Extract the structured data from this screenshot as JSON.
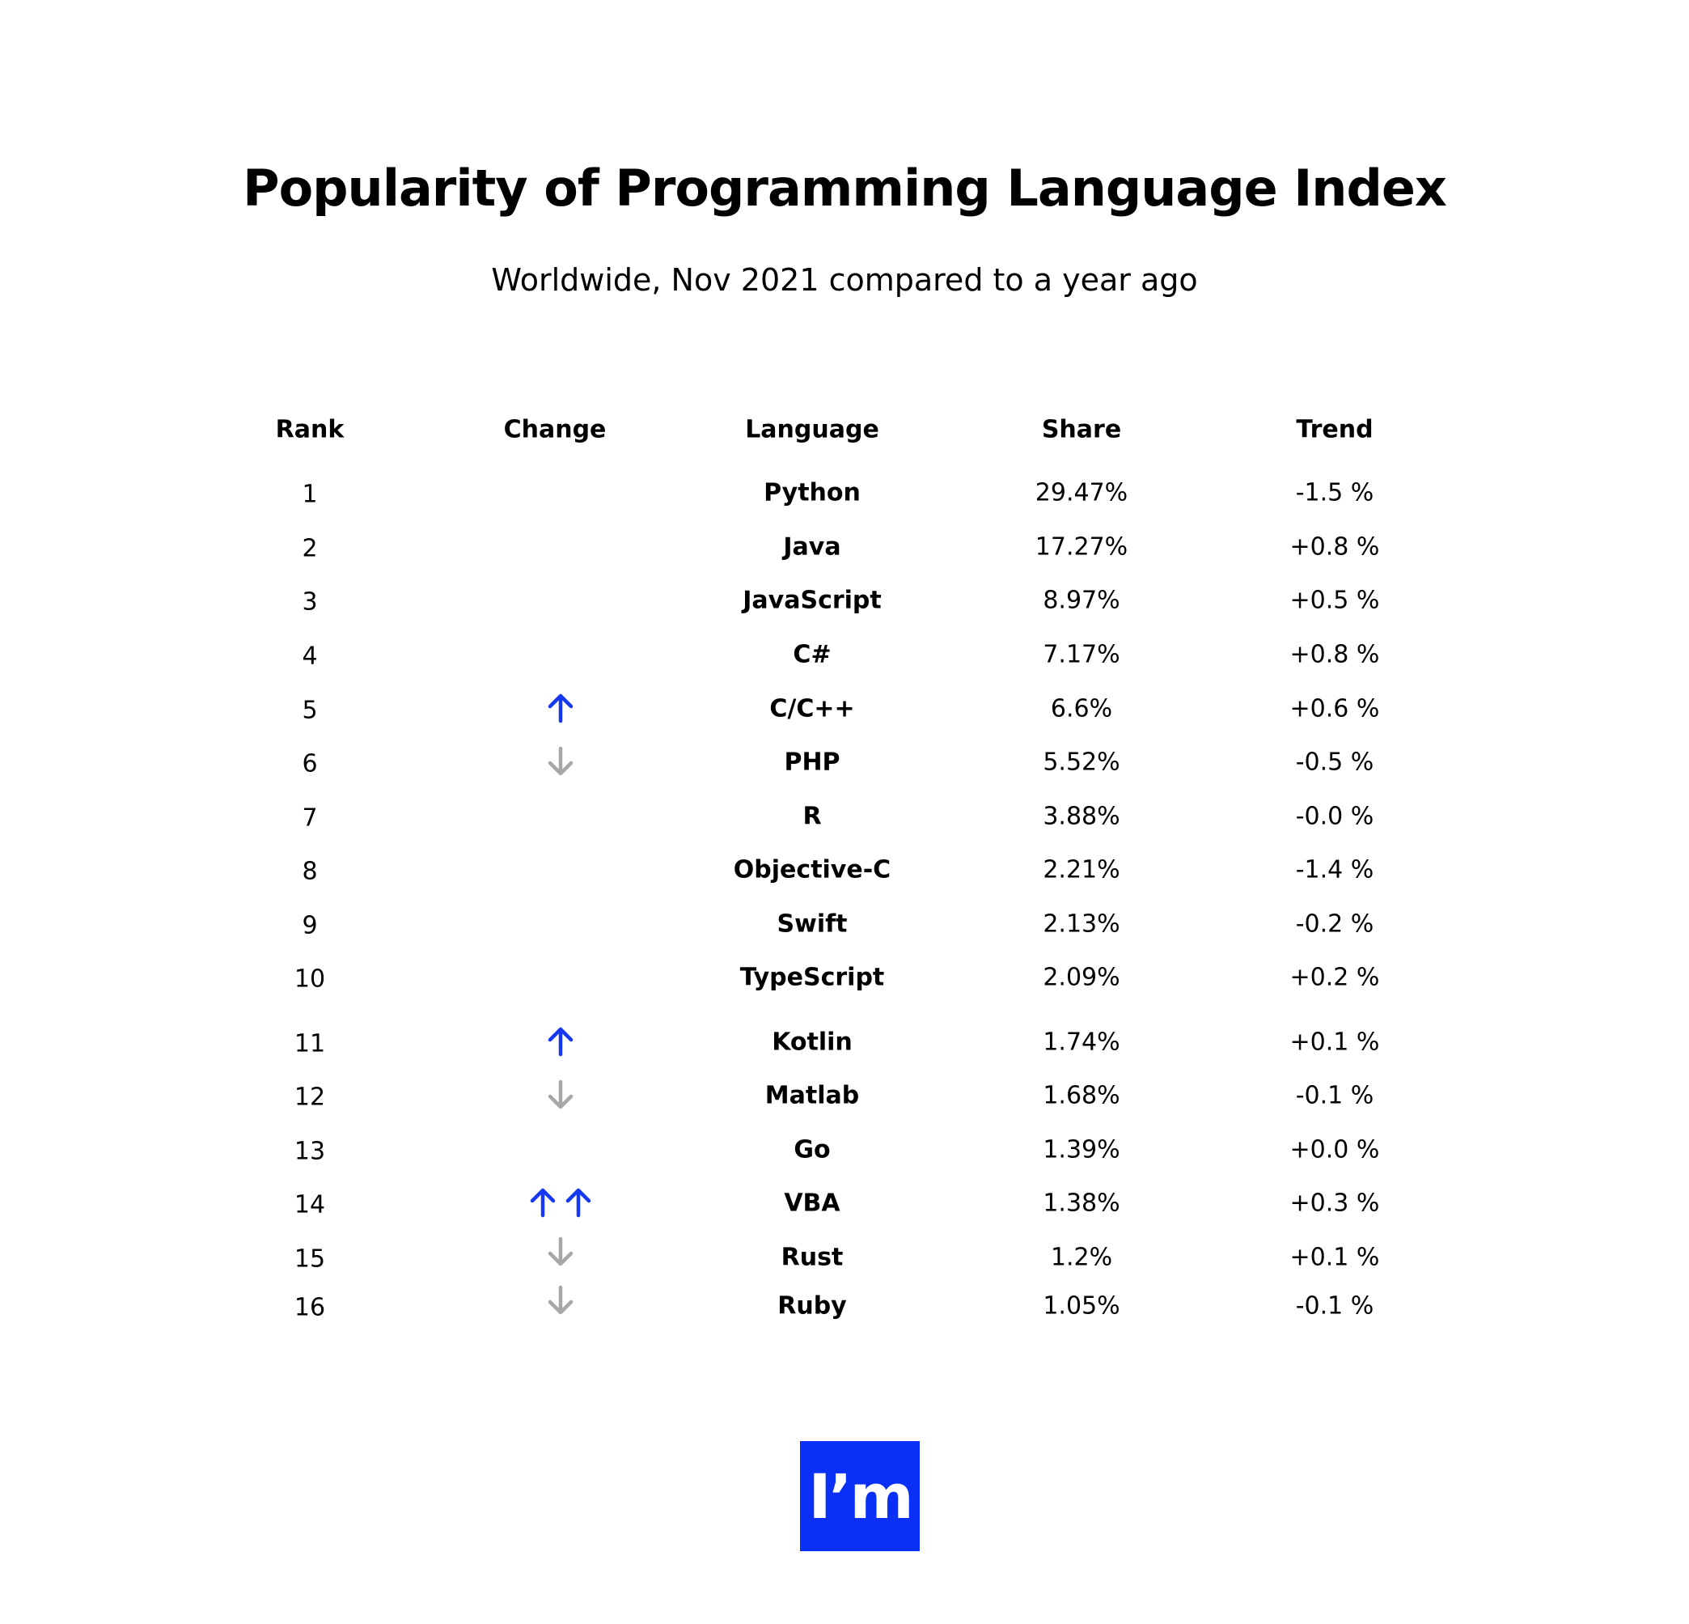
{
  "title": "Popularity of Programming Language Index",
  "subtitle": "Worldwide, Nov 2021 compared to a year ago",
  "logo": {
    "text": "I’m",
    "background": "#0a30f5",
    "color": "#ffffff"
  },
  "colors": {
    "up_arrow": "#1538f0",
    "down_arrow": "#a7a7a7",
    "text": "#000000"
  },
  "chart_data": {
    "type": "table",
    "title": "Popularity of Programming Language Index",
    "subtitle": "Worldwide, Nov 2021 compared to a year ago",
    "columns": [
      "Rank",
      "Change",
      "Language",
      "Share",
      "Trend"
    ],
    "rows": [
      {
        "rank": "1",
        "change": [],
        "language": "Python",
        "share": "29.47%",
        "trend": "-1.5 %"
      },
      {
        "rank": "2",
        "change": [],
        "language": "Java",
        "share": "17.27%",
        "trend": "+0.8 %"
      },
      {
        "rank": "3",
        "change": [],
        "language": "JavaScript",
        "share": "8.97%",
        "trend": "+0.5 %"
      },
      {
        "rank": "4",
        "change": [],
        "language": "C#",
        "share": "7.17%",
        "trend": "+0.8 %"
      },
      {
        "rank": "5",
        "change": [
          "up"
        ],
        "language": "C/C++",
        "share": "6.6%",
        "trend": "+0.6 %"
      },
      {
        "rank": "6",
        "change": [
          "down"
        ],
        "language": "PHP",
        "share": "5.52%",
        "trend": "-0.5 %"
      },
      {
        "rank": "7",
        "change": [],
        "language": "R",
        "share": "3.88%",
        "trend": "-0.0 %"
      },
      {
        "rank": "8",
        "change": [],
        "language": "Objective-C",
        "share": "2.21%",
        "trend": "-1.4 %"
      },
      {
        "rank": "9",
        "change": [],
        "language": "Swift",
        "share": "2.13%",
        "trend": "-0.2 %"
      },
      {
        "rank": "10",
        "change": [],
        "language": "TypeScript",
        "share": "2.09%",
        "trend": "+0.2 %"
      },
      {
        "rank": "11",
        "change": [
          "up"
        ],
        "language": "Kotlin",
        "share": "1.74%",
        "trend": "+0.1 %"
      },
      {
        "rank": "12",
        "change": [
          "down"
        ],
        "language": "Matlab",
        "share": "1.68%",
        "trend": "-0.1 %"
      },
      {
        "rank": "13",
        "change": [],
        "language": "Go",
        "share": "1.39%",
        "trend": "+0.0 %"
      },
      {
        "rank": "14",
        "change": [
          "up",
          "up"
        ],
        "language": "VBA",
        "share": "1.38%",
        "trend": "+0.3 %"
      },
      {
        "rank": "15",
        "change": [
          "down"
        ],
        "language": "Rust",
        "share": "1.2%",
        "trend": "+0.1 %"
      },
      {
        "rank": "16",
        "change": [
          "down"
        ],
        "language": "Ruby",
        "share": "1.05%",
        "trend": "-0.1 %"
      }
    ]
  }
}
